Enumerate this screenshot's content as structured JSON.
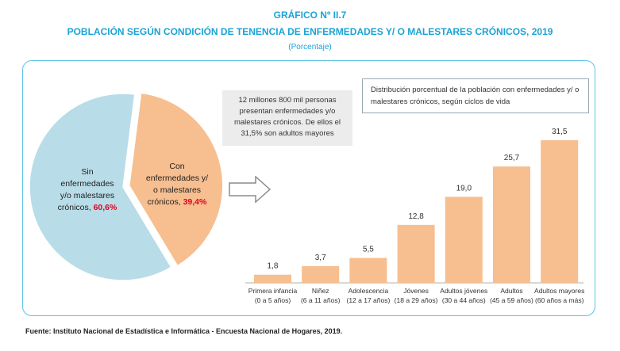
{
  "header": {
    "line1": "GRÁFICO Nº II.7",
    "line2": "POBLACIÓN SEGÚN CONDICIÓN DE TENENCIA DE ENFERMEDADES Y/ O MALESTARES CRÓNICOS, 2019",
    "line3": "(Porcentaje)"
  },
  "colors": {
    "accent": "#1ba3d6",
    "pie_without": "#b8dce8",
    "pie_with": "#f7be8f",
    "bar": "#f7be8f",
    "highlight": "#e3001b"
  },
  "note_text": "12 millones  800 mil personas presentan enfermedades y/o malestares crónicos. De ellos el 31,5% son adultos  mayores",
  "dist_text": "Distribución porcentual de la población con enfermedades y/ o malestares crónicos, según ciclos de vida",
  "source": "Fuente: Instituto Nacional de Estadística e Informática - Encuesta Nacional de Hogares, 2019.",
  "chart_data": [
    {
      "type": "pie",
      "slices": [
        {
          "label_lines": [
            "Sin",
            "enfermedades",
            "y/o malestares",
            "crónicos,"
          ],
          "value": 60.6,
          "value_label": "60,6%"
        },
        {
          "label_lines": [
            "Con",
            "enfermedades y/",
            "o malestares",
            "crónicos,"
          ],
          "value": 39.4,
          "value_label": "39,4%"
        }
      ]
    },
    {
      "type": "bar",
      "categories": [
        [
          "Primera infancia",
          "(0 a 5 años)"
        ],
        [
          "Niñez",
          "(6 a 11 años)"
        ],
        [
          "Adolescencia",
          "(12 a 17 años)"
        ],
        [
          "Jóvenes",
          "(18 a 29 años)"
        ],
        [
          "Adultos jóvenes",
          "(30 a 44 años)"
        ],
        [
          "Adultos",
          "(45 a 59 años)"
        ],
        [
          "Adultos mayores",
          "(60 años a más)"
        ]
      ],
      "values": [
        1.8,
        3.7,
        5.5,
        12.8,
        19.0,
        25.7,
        31.5
      ],
      "value_labels": [
        "1,8",
        "3,7",
        "5,5",
        "12,8",
        "19,0",
        "25,7",
        "31,5"
      ],
      "ylim": [
        0,
        31.5
      ]
    }
  ]
}
